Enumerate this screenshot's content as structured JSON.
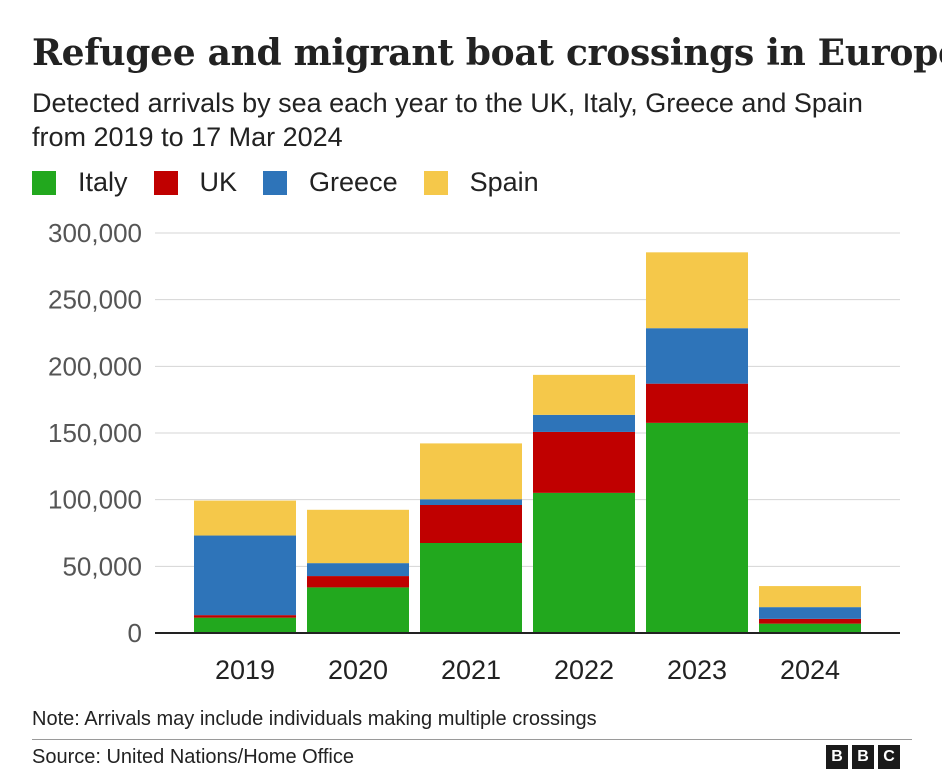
{
  "header": {
    "title": "Refugee and migrant boat crossings in Europe",
    "subtitle": "Detected arrivals by sea each year to the UK, Italy, Greece and Spain from 2019 to 17 Mar 2024"
  },
  "footer": {
    "note": "Note: Arrivals may include individuals making multiple crossings",
    "source": "Source: United Nations/Home Office",
    "logo_letters": [
      "B",
      "B",
      "C"
    ]
  },
  "chart_data": {
    "type": "bar",
    "stacked": true,
    "categories": [
      "2019",
      "2020",
      "2021",
      "2022",
      "2023",
      "2024"
    ],
    "series": [
      {
        "name": "Italy",
        "color": "#22a81e",
        "values": [
          11500,
          34200,
          67500,
          105100,
          157600,
          7000
        ]
      },
      {
        "name": "UK",
        "color": "#c00000",
        "values": [
          1900,
          8500,
          28500,
          45700,
          29400,
          3600
        ]
      },
      {
        "name": "Greece",
        "color": "#2e74b9",
        "values": [
          59700,
          9700,
          4300,
          12800,
          41600,
          8800
        ]
      },
      {
        "name": "Spain",
        "color": "#f5c84a",
        "values": [
          26200,
          40000,
          41900,
          30000,
          56900,
          15800
        ]
      }
    ],
    "legend_order": [
      "Italy",
      "UK",
      "Greece",
      "Spain"
    ],
    "legend_position": "top-left",
    "ylim": [
      0,
      300000
    ],
    "yticks": [
      0,
      50000,
      100000,
      150000,
      200000,
      250000,
      300000
    ],
    "ytick_labels": [
      "0",
      "50,000",
      "100,000",
      "150,000",
      "200,000",
      "250,000",
      "300,000"
    ],
    "grid": true
  }
}
